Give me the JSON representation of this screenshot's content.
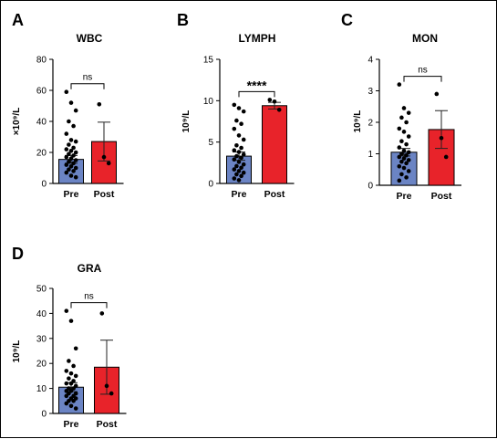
{
  "colors": {
    "pre": "#6b84c4",
    "post": "#e8232a",
    "dot": "#000000",
    "axis": "#000000"
  },
  "chart_data": [
    {
      "panel": "A",
      "title": "WBC",
      "type": "bar",
      "ylabel": "×10⁹/L",
      "ylim": [
        0,
        80
      ],
      "yticks": [
        "0",
        "20",
        "40",
        "60",
        "80"
      ],
      "categories": [
        "Pre",
        "Post"
      ],
      "values": [
        15.5,
        27.0
      ],
      "error": [
        2.5,
        12.5
      ],
      "significance": "ns",
      "points": [
        [
          59,
          52,
          47,
          40,
          37,
          32,
          28,
          27,
          25,
          23,
          22,
          21,
          20,
          19,
          18,
          17,
          16,
          15,
          14,
          13,
          12,
          11,
          10,
          9,
          8,
          7,
          5,
          4
        ],
        [
          51,
          17,
          13
        ]
      ]
    },
    {
      "panel": "B",
      "title": "LYMPH",
      "type": "bar",
      "ylabel": "10⁹/L",
      "ylim": [
        0,
        15
      ],
      "yticks": [
        "0",
        "5",
        "10",
        "15"
      ],
      "categories": [
        "Pre",
        "Post"
      ],
      "values": [
        3.3,
        9.4
      ],
      "error": [
        0.5,
        0.4
      ],
      "significance": "****",
      "points": [
        [
          9.5,
          9.1,
          8.7,
          7.6,
          7.2,
          6.6,
          5.8,
          5.3,
          4.6,
          4.3,
          4.0,
          3.8,
          3.5,
          3.3,
          3.1,
          2.9,
          2.6,
          2.3,
          2.1,
          1.9,
          1.7,
          1.5,
          1.3,
          1.1,
          0.9,
          0.6,
          0.4
        ],
        [
          10.1,
          9.9,
          8.9
        ]
      ]
    },
    {
      "panel": "C",
      "title": "MON",
      "type": "bar",
      "ylabel": "10⁹/L",
      "ylim": [
        0,
        4
      ],
      "yticks": [
        "0",
        "1",
        "2",
        "3",
        "4"
      ],
      "categories": [
        "Pre",
        "Post"
      ],
      "values": [
        1.05,
        1.77
      ],
      "error": [
        0.12,
        0.6
      ],
      "significance": "ns",
      "points": [
        [
          3.2,
          2.45,
          2.3,
          2.15,
          2.0,
          1.8,
          1.7,
          1.55,
          1.4,
          1.3,
          1.2,
          1.1,
          1.05,
          1.0,
          0.95,
          0.9,
          0.85,
          0.8,
          0.75,
          0.7,
          0.6,
          0.55,
          0.45,
          0.35,
          0.25,
          0.15
        ],
        [
          2.9,
          1.5,
          0.9
        ]
      ]
    },
    {
      "panel": "D",
      "title": "GRA",
      "type": "bar",
      "ylabel": "10⁹/L",
      "ylim": [
        0,
        50
      ],
      "yticks": [
        "0",
        "10",
        "20",
        "30",
        "40",
        "50"
      ],
      "categories": [
        "Pre",
        "Post"
      ],
      "values": [
        10.5,
        18.5
      ],
      "error": [
        1.8,
        10.8
      ],
      "significance": "ns",
      "points": [
        [
          41,
          37,
          26,
          21,
          19,
          17,
          16,
          15,
          14,
          13,
          12,
          12,
          11,
          10,
          10,
          9,
          9,
          8,
          8,
          7,
          7,
          6,
          6,
          5,
          5,
          4,
          3,
          2
        ],
        [
          40,
          11,
          8
        ]
      ]
    }
  ]
}
